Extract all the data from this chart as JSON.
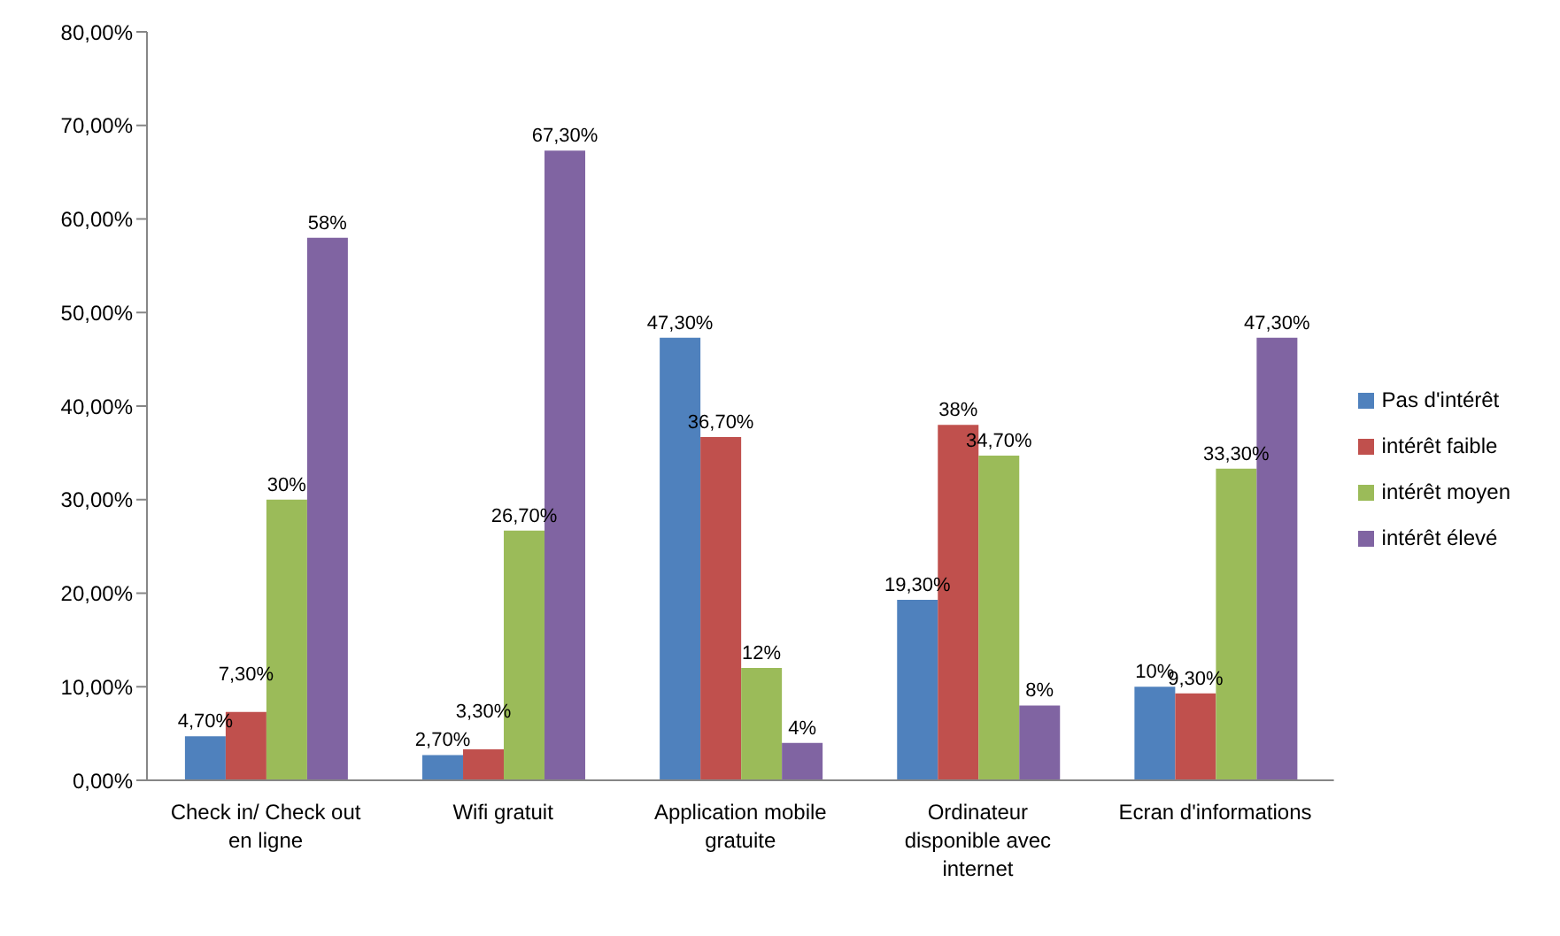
{
  "chart_data": {
    "type": "bar",
    "categories": [
      "Check in/ Check out en ligne",
      "Wifi gratuit",
      "Application mobile gratuite",
      "Ordinateur disponible avec internet",
      "Ecran d'informations"
    ],
    "series": [
      {
        "name": "Pas d'intérêt",
        "color": "#4f81bd",
        "values": [
          4.7,
          2.7,
          47.3,
          19.3,
          10
        ],
        "value_labels": [
          "4,70%",
          "2,70%",
          "47,30%",
          "19,30%",
          "10%"
        ]
      },
      {
        "name": "intérêt faible",
        "color": "#c0504d",
        "values": [
          7.3,
          3.3,
          36.7,
          38,
          9.3
        ],
        "value_labels": [
          "7,30%",
          "3,30%",
          "36,70%",
          "38%",
          "9,30%"
        ]
      },
      {
        "name": "intérêt moyen",
        "color": "#9bbb59",
        "values": [
          30,
          26.7,
          12,
          34.7,
          33.3
        ],
        "value_labels": [
          "30%",
          "26,70%",
          "12%",
          "34,70%",
          "33,30%"
        ]
      },
      {
        "name": "intérêt élevé",
        "color": "#8064a2",
        "values": [
          58,
          67.3,
          4,
          8,
          47.3
        ],
        "value_labels": [
          "58%",
          "67,30%",
          "4%",
          "8%",
          "47,30%"
        ]
      }
    ],
    "ylim": [
      0,
      80
    ],
    "yticks": [
      {
        "value": 0,
        "label": "0,00%"
      },
      {
        "value": 10,
        "label": "10,00%"
      },
      {
        "value": 20,
        "label": "20,00%"
      },
      {
        "value": 30,
        "label": "30,00%"
      },
      {
        "value": 40,
        "label": "40,00%"
      },
      {
        "value": 50,
        "label": "50,00%"
      },
      {
        "value": 60,
        "label": "60,00%"
      },
      {
        "value": 70,
        "label": "70,00%"
      },
      {
        "value": 80,
        "label": "80,00%"
      }
    ],
    "grid": false,
    "legend": "right"
  }
}
